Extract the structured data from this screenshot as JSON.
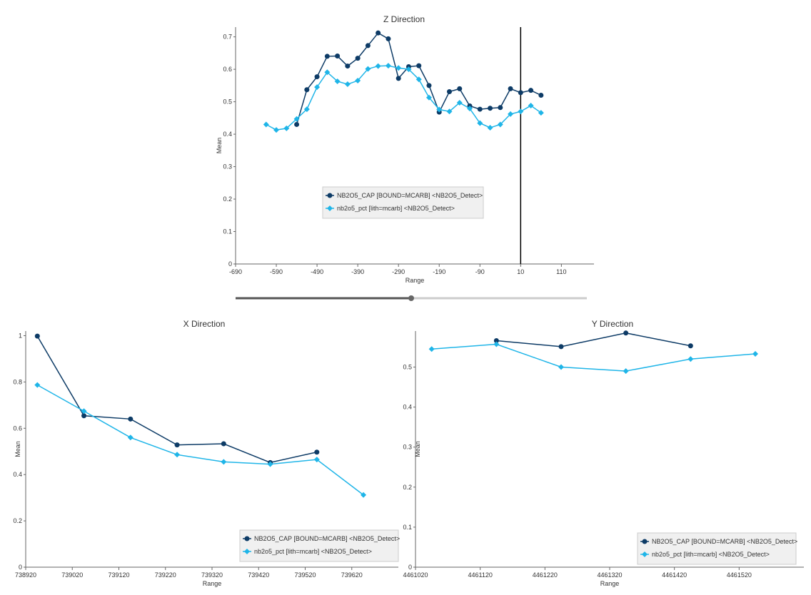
{
  "colors": {
    "series_dark": "#0d3b66",
    "series_light": "#1fb5e8",
    "axis": "#666666",
    "legend_bg": "#f0f0f0",
    "legend_border": "#cccccc",
    "cursor_line": "#000000",
    "slider": "#888888"
  },
  "chart_data": [
    {
      "id": "z",
      "type": "line",
      "title": "Z Direction",
      "xlabel": "Range",
      "ylabel": "Mean",
      "xlim": [
        -690,
        190
      ],
      "ylim": [
        0,
        0.73
      ],
      "xticks": [
        -690,
        -590,
        -490,
        -390,
        -290,
        -190,
        -90,
        10,
        110
      ],
      "yticks": [
        0,
        0.1,
        0.2,
        0.3,
        0.4,
        0.5,
        0.6,
        0.7
      ],
      "ytick_labels": [
        "0",
        "0.1",
        "0.2",
        "0.3",
        "0.4",
        "0.5",
        "0.6",
        "0.7"
      ],
      "cursor_x": 10,
      "legend": "center",
      "series": [
        {
          "name": "NB2O5_CAP [BOUND=MCARB] <NB2O5_Detect>",
          "color": "#0d3b66",
          "marker": "circle",
          "points": [
            [
              -540,
              0.43
            ],
            [
              -515,
              0.537
            ],
            [
              -490,
              0.577
            ],
            [
              -465,
              0.64
            ],
            [
              -440,
              0.641
            ],
            [
              -415,
              0.61
            ],
            [
              -390,
              0.634
            ],
            [
              -365,
              0.673
            ],
            [
              -340,
              0.712
            ],
            [
              -315,
              0.694
            ],
            [
              -290,
              0.572
            ],
            [
              -265,
              0.608
            ],
            [
              -240,
              0.611
            ],
            [
              -215,
              0.55
            ],
            [
              -190,
              0.468
            ],
            [
              -165,
              0.531
            ],
            [
              -140,
              0.54
            ],
            [
              -115,
              0.487
            ],
            [
              -90,
              0.477
            ],
            [
              -65,
              0.48
            ],
            [
              -40,
              0.482
            ],
            [
              -15,
              0.54
            ],
            [
              10,
              0.528
            ],
            [
              35,
              0.535
            ],
            [
              60,
              0.52
            ]
          ]
        },
        {
          "name": "nb2o5_pct [lith=mcarb] <NB2O5_Detect>",
          "color": "#1fb5e8",
          "marker": "diamond",
          "points": [
            [
              -615,
              0.43
            ],
            [
              -590,
              0.413
            ],
            [
              -565,
              0.418
            ],
            [
              -540,
              0.447
            ],
            [
              -515,
              0.477
            ],
            [
              -490,
              0.545
            ],
            [
              -465,
              0.591
            ],
            [
              -440,
              0.563
            ],
            [
              -415,
              0.554
            ],
            [
              -390,
              0.565
            ],
            [
              -365,
              0.601
            ],
            [
              -340,
              0.61
            ],
            [
              -315,
              0.611
            ],
            [
              -290,
              0.604
            ],
            [
              -265,
              0.6
            ],
            [
              -240,
              0.569
            ],
            [
              -215,
              0.513
            ],
            [
              -190,
              0.476
            ],
            [
              -165,
              0.47
            ],
            [
              -140,
              0.497
            ],
            [
              -115,
              0.479
            ],
            [
              -90,
              0.434
            ],
            [
              -65,
              0.42
            ],
            [
              -40,
              0.43
            ],
            [
              -15,
              0.462
            ],
            [
              10,
              0.47
            ],
            [
              35,
              0.488
            ],
            [
              60,
              0.466
            ]
          ]
        }
      ]
    },
    {
      "id": "x",
      "type": "line",
      "title": "X Direction",
      "xlabel": "Range",
      "ylabel": "Mean",
      "xlim": [
        738920,
        739720
      ],
      "ylim": [
        0,
        1.02
      ],
      "xticks": [
        738920,
        739020,
        739120,
        739220,
        739320,
        739420,
        739520,
        739620
      ],
      "yticks": [
        0,
        0.2,
        0.4,
        0.6,
        0.8,
        1
      ],
      "ytick_labels": [
        "0",
        "0.2",
        "0.4",
        "0.6",
        "0.8",
        "1"
      ],
      "legend": "bottom-right",
      "series": [
        {
          "name": "NB2O5_CAP [BOUND=MCARB] <NB2O5_Detect>",
          "color": "#0d3b66",
          "marker": "circle",
          "points": [
            [
              738945,
              0.998
            ],
            [
              739045,
              0.654
            ],
            [
              739145,
              0.64
            ],
            [
              739245,
              0.528
            ],
            [
              739345,
              0.533
            ],
            [
              739445,
              0.452
            ],
            [
              739545,
              0.497
            ]
          ]
        },
        {
          "name": "nb2o5_pct [lith=mcarb] <NB2O5_Detect>",
          "color": "#1fb5e8",
          "marker": "diamond",
          "points": [
            [
              738945,
              0.787
            ],
            [
              739045,
              0.674
            ],
            [
              739145,
              0.56
            ],
            [
              739245,
              0.486
            ],
            [
              739345,
              0.455
            ],
            [
              739445,
              0.445
            ],
            [
              739545,
              0.465
            ],
            [
              739645,
              0.312
            ]
          ]
        }
      ]
    },
    {
      "id": "y",
      "type": "line",
      "title": "Y Direction",
      "xlabel": "Range",
      "ylabel": "Mean",
      "xlim": [
        4461020,
        4461620
      ],
      "ylim": [
        0,
        0.59
      ],
      "xticks": [
        4461020,
        4461120,
        4461220,
        4461320,
        4461420,
        4461520
      ],
      "yticks": [
        0,
        0.1,
        0.2,
        0.3,
        0.4,
        0.5
      ],
      "ytick_labels": [
        "0",
        "0.1",
        "0.2",
        "0.3",
        "0.4",
        "0.5"
      ],
      "legend": "bottom-right",
      "series": [
        {
          "name": "NB2O5_CAP [BOUND=MCARB] <NB2O5_Detect>",
          "color": "#0d3b66",
          "marker": "circle",
          "points": [
            [
              4461145,
              0.566
            ],
            [
              4461245,
              0.551
            ],
            [
              4461345,
              0.585
            ],
            [
              4461445,
              0.553
            ]
          ]
        },
        {
          "name": "nb2o5_pct [lith=mcarb] <NB2O5_Detect>",
          "color": "#1fb5e8",
          "marker": "diamond",
          "points": [
            [
              4461045,
              0.545
            ],
            [
              4461145,
              0.557
            ],
            [
              4461245,
              0.5
            ],
            [
              4461345,
              0.49
            ],
            [
              4461445,
              0.52
            ],
            [
              4461545,
              0.533
            ]
          ]
        }
      ]
    }
  ],
  "slider": {
    "value": 0.5
  }
}
